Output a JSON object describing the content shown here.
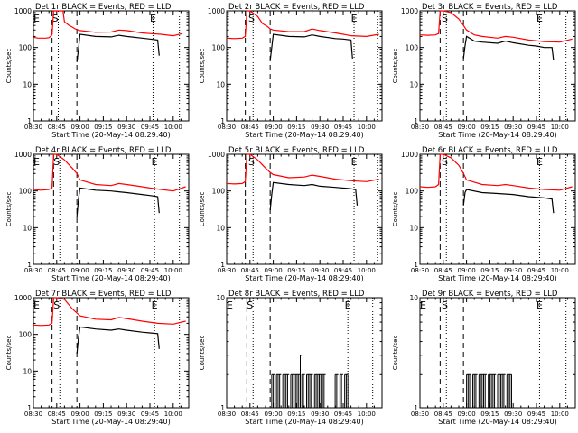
{
  "chart_data": [
    {
      "type": "line",
      "title": "Det 1r BLACK = Events, RED = LLD",
      "xlabel": "Start Time (20-May-14 08:29:40)",
      "ylabel": "Counts/sec",
      "yscale": "log",
      "ylim": [
        1,
        1000
      ],
      "xlim": [
        "08:30",
        "10:10"
      ],
      "x_ticks": [
        "08:30",
        "08:45",
        "09:00",
        "09:15",
        "09:30",
        "09:45",
        "10:00"
      ],
      "y_ticks": [
        "1",
        "10",
        "100",
        "1000"
      ],
      "markers": [
        {
          "label": "E",
          "x": "08:32"
        },
        {
          "label": "S",
          "x": "08:44"
        },
        {
          "label": "E",
          "x": "09:47"
        }
      ],
      "dashed_lines": [
        "08:42",
        "08:58"
      ],
      "dotted_lines": [
        "08:46",
        "09:47",
        "10:04"
      ],
      "series": [
        {
          "color": "#ff0000",
          "x": [
            "08:30",
            "08:33",
            "08:38",
            "08:40",
            "08:42",
            "08:43",
            "08:45",
            "08:49",
            "08:50",
            "08:53",
            "08:55",
            "08:57",
            "08:58",
            "09:00",
            "09:10",
            "09:20",
            "09:25",
            "09:30",
            "09:40",
            "09:45",
            "09:52",
            "10:00",
            "10:06"
          ],
          "y": [
            190,
            180,
            180,
            185,
            220,
            1000,
            1000,
            1000,
            500,
            400,
            360,
            320,
            310,
            290,
            260,
            265,
            300,
            290,
            250,
            240,
            230,
            210,
            240
          ]
        },
        {
          "color": "#000000",
          "x": [
            "08:58",
            "08:59",
            "09:00",
            "09:10",
            "09:20",
            "09:25",
            "09:30",
            "09:40",
            "09:45",
            "09:50",
            "09:51"
          ],
          "y": [
            40,
            90,
            230,
            200,
            195,
            215,
            200,
            180,
            170,
            160,
            60
          ]
        }
      ]
    },
    {
      "type": "line",
      "title": "Det 2r BLACK = Events, RED = LLD",
      "xlabel": "Start Time (20-May-14 08:29:40)",
      "ylabel": "Counts/sec",
      "yscale": "log",
      "ylim": [
        1,
        1000
      ],
      "xlim": [
        "08:30",
        "10:10"
      ],
      "x_ticks": [
        "08:30",
        "08:45",
        "09:00",
        "09:15",
        "09:30",
        "09:45",
        "10:00"
      ],
      "y_ticks": [
        "1",
        "10",
        "100",
        "1000"
      ],
      "markers": [
        {
          "label": "S",
          "x": "08:46"
        },
        {
          "label": "E",
          "x": "09:52"
        }
      ],
      "dashed_lines": [
        "08:42",
        "08:58"
      ],
      "dotted_lines": [
        "08:47",
        "09:52",
        "10:07"
      ],
      "series": [
        {
          "color": "#ff0000",
          "x": [
            "08:30",
            "08:35",
            "08:40",
            "08:42",
            "08:43",
            "08:45",
            "08:50",
            "08:53",
            "08:56",
            "08:58",
            "09:00",
            "09:10",
            "09:20",
            "09:25",
            "09:30",
            "09:40",
            "09:45",
            "09:50",
            "10:00",
            "10:08"
          ],
          "y": [
            180,
            175,
            180,
            200,
            1000,
            1000,
            700,
            450,
            380,
            320,
            300,
            270,
            270,
            320,
            290,
            250,
            230,
            210,
            200,
            230
          ]
        },
        {
          "color": "#000000",
          "x": [
            "08:58",
            "08:59",
            "09:00",
            "09:10",
            "09:20",
            "09:25",
            "09:30",
            "09:40",
            "09:45",
            "09:50",
            "09:51"
          ],
          "y": [
            45,
            100,
            230,
            200,
            195,
            220,
            200,
            175,
            170,
            160,
            50
          ]
        }
      ]
    },
    {
      "type": "line",
      "title": "Det 3r BLACK = Events, RED = LLD",
      "xlabel": "Start Time (20-May-14 08:29:40)",
      "ylabel": "Counts/sec",
      "yscale": "log",
      "ylim": [
        1,
        1000
      ],
      "xlim": [
        "08:30",
        "10:10"
      ],
      "x_ticks": [
        "08:30",
        "08:45",
        "09:00",
        "09:15",
        "09:30",
        "09:45",
        "10:00"
      ],
      "y_ticks": [
        "1",
        "10",
        "100",
        "1000"
      ],
      "markers": [
        {
          "label": "S",
          "x": "08:46"
        },
        {
          "label": "E",
          "x": "09:47"
        }
      ],
      "dashed_lines": [
        "08:43",
        "08:58"
      ],
      "dotted_lines": [
        "08:47",
        "09:47",
        "10:04"
      ],
      "series": [
        {
          "color": "#ff0000",
          "x": [
            "08:30",
            "08:35",
            "08:40",
            "08:42",
            "08:43",
            "08:45",
            "08:50",
            "08:55",
            "08:58",
            "09:00",
            "09:05",
            "09:10",
            "09:20",
            "09:25",
            "09:30",
            "09:40",
            "09:50",
            "10:00",
            "10:08"
          ],
          "y": [
            220,
            215,
            220,
            240,
            1000,
            1000,
            900,
            600,
            400,
            300,
            220,
            200,
            180,
            200,
            190,
            160,
            145,
            140,
            170
          ]
        },
        {
          "color": "#000000",
          "x": [
            "08:58",
            "08:59",
            "09:00",
            "09:05",
            "09:10",
            "09:20",
            "09:25",
            "09:30",
            "09:40",
            "09:45",
            "09:50",
            "09:55",
            "09:56"
          ],
          "y": [
            50,
            110,
            200,
            150,
            140,
            130,
            150,
            135,
            115,
            110,
            100,
            100,
            45
          ]
        }
      ]
    },
    {
      "type": "line",
      "title": "Det 4r BLACK = Events, RED = LLD",
      "xlabel": "Start Time (20-May-14 08:29:40)",
      "ylabel": "Counts/sec",
      "yscale": "log",
      "ylim": [
        1,
        1000
      ],
      "xlim": [
        "08:30",
        "10:10"
      ],
      "x_ticks": [
        "08:30",
        "08:45",
        "09:00",
        "09:15",
        "09:30",
        "09:45",
        "10:00"
      ],
      "y_ticks": [
        "1",
        "10",
        "100",
        "1000"
      ],
      "markers": [
        {
          "label": "E",
          "x": "08:32"
        },
        {
          "label": "S",
          "x": "08:45"
        },
        {
          "label": "E",
          "x": "09:48"
        }
      ],
      "dashed_lines": [
        "08:43",
        "08:58"
      ],
      "dotted_lines": [
        "08:47",
        "09:48",
        "10:04"
      ],
      "series": [
        {
          "color": "#ff0000",
          "x": [
            "08:30",
            "08:35",
            "08:40",
            "08:42",
            "08:43",
            "08:45",
            "08:50",
            "08:55",
            "08:58",
            "09:00",
            "09:10",
            "09:20",
            "09:25",
            "09:30",
            "09:40",
            "09:45",
            "09:52",
            "10:00",
            "10:08"
          ],
          "y": [
            110,
            105,
            110,
            120,
            1000,
            1000,
            700,
            420,
            300,
            200,
            150,
            140,
            160,
            150,
            130,
            120,
            110,
            100,
            130
          ]
        },
        {
          "color": "#000000",
          "x": [
            "08:58",
            "08:59",
            "09:00",
            "09:10",
            "09:20",
            "09:25",
            "09:30",
            "09:40",
            "09:45",
            "09:50",
            "09:51"
          ],
          "y": [
            20,
            60,
            120,
            105,
            100,
            95,
            90,
            80,
            75,
            70,
            25
          ]
        }
      ]
    },
    {
      "type": "line",
      "title": "Det 5r BLACK = Events, RED = LLD",
      "xlabel": "Start Time (20-May-14 08:29:40)",
      "ylabel": "Counts/sec",
      "yscale": "log",
      "ylim": [
        1,
        1000
      ],
      "xlim": [
        "08:30",
        "10:10"
      ],
      "x_ticks": [
        "08:30",
        "08:45",
        "09:00",
        "09:15",
        "09:30",
        "09:45",
        "10:00"
      ],
      "y_ticks": [
        "1",
        "10",
        "100",
        "1000"
      ],
      "markers": [
        {
          "label": "S",
          "x": "08:46"
        },
        {
          "label": "E",
          "x": "09:52"
        }
      ],
      "dashed_lines": [
        "08:42",
        "08:58"
      ],
      "dotted_lines": [
        "08:47",
        "09:52",
        "10:07"
      ],
      "series": [
        {
          "color": "#ff0000",
          "x": [
            "08:30",
            "08:35",
            "08:40",
            "08:42",
            "08:43",
            "08:45",
            "08:50",
            "08:55",
            "08:58",
            "09:00",
            "09:10",
            "09:20",
            "09:25",
            "09:30",
            "09:40",
            "09:50",
            "10:00",
            "10:08"
          ],
          "y": [
            160,
            155,
            160,
            180,
            1000,
            1000,
            700,
            420,
            320,
            280,
            230,
            240,
            270,
            250,
            210,
            190,
            180,
            210
          ]
        },
        {
          "color": "#000000",
          "x": [
            "08:58",
            "08:59",
            "09:00",
            "09:10",
            "09:20",
            "09:25",
            "09:30",
            "09:40",
            "09:50",
            "09:53",
            "09:54"
          ],
          "y": [
            30,
            80,
            170,
            150,
            140,
            150,
            135,
            125,
            115,
            110,
            40
          ]
        }
      ]
    },
    {
      "type": "line",
      "title": "Det 6r BLACK = Events, RED = LLD",
      "xlabel": "Start Time (20-May-14 08:29:40)",
      "ylabel": "Counts/sec",
      "yscale": "log",
      "ylim": [
        1,
        1000
      ],
      "xlim": [
        "08:30",
        "10:10"
      ],
      "x_ticks": [
        "08:30",
        "08:45",
        "09:00",
        "09:15",
        "09:30",
        "09:45",
        "10:00"
      ],
      "y_ticks": [
        "1",
        "10",
        "100",
        "1000"
      ],
      "markers": [
        {
          "label": "S",
          "x": "08:46"
        },
        {
          "label": "E",
          "x": "09:47"
        }
      ],
      "dashed_lines": [
        "08:43",
        "08:58"
      ],
      "dotted_lines": [
        "08:47",
        "09:47",
        "10:04"
      ],
      "series": [
        {
          "color": "#ff0000",
          "x": [
            "08:30",
            "08:35",
            "08:40",
            "08:42",
            "08:43",
            "08:45",
            "08:50",
            "08:55",
            "08:58",
            "09:00",
            "09:10",
            "09:20",
            "09:25",
            "09:30",
            "09:40",
            "09:50",
            "10:00",
            "10:08"
          ],
          "y": [
            130,
            125,
            130,
            150,
            1000,
            1000,
            800,
            500,
            300,
            200,
            150,
            140,
            150,
            140,
            120,
            110,
            105,
            130
          ]
        },
        {
          "color": "#000000",
          "x": [
            "08:58",
            "08:59",
            "09:00",
            "09:10",
            "09:20",
            "09:30",
            "09:40",
            "09:50",
            "09:55",
            "09:56"
          ],
          "y": [
            40,
            90,
            110,
            90,
            85,
            80,
            70,
            65,
            60,
            25
          ]
        }
      ]
    },
    {
      "type": "line",
      "title": "Det 7r BLACK = Events, RED = LLD",
      "xlabel": "Start Time (20-May-14 08:29:40)",
      "ylabel": "Counts/sec",
      "yscale": "log",
      "ylim": [
        1,
        1000
      ],
      "xlim": [
        "08:30",
        "10:10"
      ],
      "x_ticks": [
        "08:30",
        "08:45",
        "09:00",
        "09:15",
        "09:30",
        "09:45",
        "10:00"
      ],
      "y_ticks": [
        "1",
        "10",
        "100",
        "1000"
      ],
      "markers": [
        {
          "label": "E",
          "x": "08:32"
        },
        {
          "label": "S",
          "x": "08:45"
        },
        {
          "label": "E",
          "x": "09:48"
        }
      ],
      "dashed_lines": [
        "08:42",
        "08:58"
      ],
      "dotted_lines": [
        "08:47",
        "09:48",
        "10:04"
      ],
      "series": [
        {
          "color": "#ff0000",
          "x": [
            "08:30",
            "08:35",
            "08:40",
            "08:42",
            "08:43",
            "08:45",
            "08:50",
            "08:55",
            "08:58",
            "09:00",
            "09:10",
            "09:20",
            "09:25",
            "09:30",
            "09:40",
            "09:50",
            "10:00",
            "10:08"
          ],
          "y": [
            180,
            175,
            180,
            200,
            1000,
            1000,
            900,
            500,
            380,
            320,
            260,
            250,
            290,
            270,
            230,
            200,
            190,
            230
          ]
        },
        {
          "color": "#000000",
          "x": [
            "08:58",
            "08:59",
            "09:00",
            "09:10",
            "09:20",
            "09:25",
            "09:30",
            "09:40",
            "09:45",
            "09:50",
            "09:51"
          ],
          "y": [
            30,
            80,
            160,
            140,
            130,
            140,
            130,
            115,
            110,
            105,
            40
          ]
        }
      ]
    },
    {
      "type": "bar",
      "title": "Det 8r BLACK = Events, RED = LLD",
      "xlabel": "Start Time (20-May-14 08:29:40)",
      "ylabel": "Counts/sec",
      "yscale": "log",
      "ylim": [
        1,
        10
      ],
      "xlim": [
        "08:30",
        "10:10"
      ],
      "x_ticks": [
        "08:30",
        "08:45",
        "09:00",
        "09:15",
        "09:30",
        "09:45",
        "10:00"
      ],
      "y_ticks": [
        "1",
        "10"
      ],
      "markers": [
        {
          "label": "E",
          "x": "08:32"
        },
        {
          "label": "S",
          "x": "08:45"
        },
        {
          "label": "E",
          "x": "09:48"
        }
      ],
      "dashed_lines": [
        "08:43",
        "08:58"
      ],
      "dotted_lines": [
        "08:47",
        "09:48",
        "10:04"
      ],
      "series": [
        {
          "color": "#000000",
          "x_start": "08:59",
          "x_end": "09:48",
          "values": [
            2,
            2,
            0,
            2,
            2,
            2,
            0,
            2,
            2,
            2,
            2,
            0,
            2,
            2,
            2,
            2,
            2,
            2,
            3,
            2,
            2,
            0,
            2,
            2,
            2,
            2,
            0,
            2,
            2,
            2,
            2,
            2,
            2,
            2,
            0,
            0,
            0,
            0,
            0,
            0,
            2,
            2,
            0,
            2,
            2,
            0,
            2,
            2,
            2
          ]
        }
      ]
    },
    {
      "type": "bar",
      "title": "Det 9r BLACK = Events, RED = LLD",
      "xlabel": "Start Time (20-May-14 08:29:40)",
      "ylabel": "Counts/sec",
      "yscale": "log",
      "ylim": [
        1,
        10
      ],
      "xlim": [
        "08:30",
        "10:10"
      ],
      "x_ticks": [
        "08:30",
        "08:45",
        "09:00",
        "09:15",
        "09:30",
        "09:45",
        "10:00"
      ],
      "y_ticks": [
        "1",
        "10"
      ],
      "markers": [
        {
          "label": "E",
          "x": "08:32"
        },
        {
          "label": "S",
          "x": "08:46"
        },
        {
          "label": "E",
          "x": "09:47"
        }
      ],
      "dashed_lines": [
        "08:43",
        "08:58"
      ],
      "dotted_lines": [
        "08:47",
        "09:47",
        "10:04"
      ],
      "series": [
        {
          "color": "#000000",
          "x_start": "09:00",
          "x_end": "09:29",
          "values": [
            2,
            2,
            2,
            0,
            2,
            2,
            2,
            0,
            2,
            2,
            2,
            2,
            2,
            0,
            2,
            2,
            2,
            2,
            2,
            0,
            2,
            2,
            2,
            2,
            2,
            0,
            2,
            2,
            2,
            2
          ]
        }
      ]
    }
  ]
}
